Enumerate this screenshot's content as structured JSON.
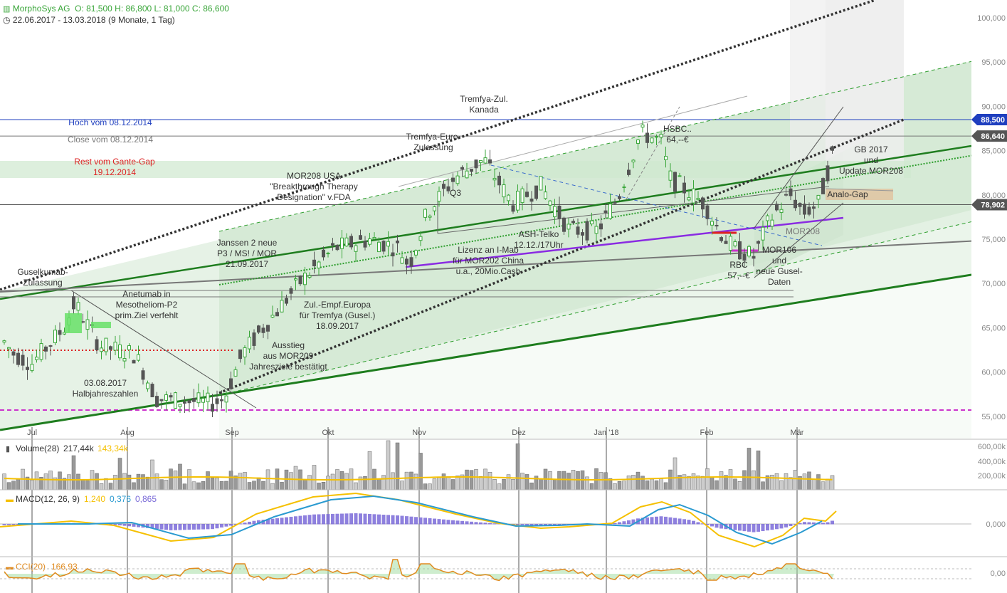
{
  "header": {
    "symbol": "MorphoSys AG",
    "ohlc": "O: 81,500  H: 86,800  L: 81,000  C: 86,600",
    "range": "22.06.2017 - 13.03.2018  (9 Monate, 1 Tag)",
    "icons": [
      "bar-chart-icon",
      "clock-icon"
    ]
  },
  "colors": {
    "up": "#3aa63a",
    "down": "#555555",
    "accent_blue": "#1f3fbf",
    "magenta": "#cc33cc",
    "purple": "#8a2be2",
    "red": "#dd2222",
    "macd": "#f5c000",
    "signal": "#2a9ad0",
    "hist": "#7a6ad8",
    "cci": "#e08a1e",
    "volume_ma": "#f5c000"
  },
  "chart_data": [
    {
      "type": "candlestick",
      "y_axis_ticks": [
        "100,000",
        "95,000",
        "90,000",
        "85,000",
        "80,000",
        "75,000",
        "70,000",
        "65,000",
        "60,000",
        "55,000"
      ],
      "ylim": [
        52.5,
        102
      ],
      "x_axis_ticks": [
        "Jul",
        "Aug",
        "Sep",
        "Okt",
        "Nov",
        "Dez",
        "Jan '18",
        "Feb",
        "Mär"
      ],
      "price_markers": [
        {
          "value": "88,500",
          "color": "#1f3fbf"
        },
        {
          "value": "86,640",
          "color": "#555555"
        },
        {
          "value": "78,902",
          "color": "#555555"
        }
      ],
      "horizontal_labels": [
        {
          "text": "Hoch vom 08.12.2014",
          "color": "#1f3fbf"
        },
        {
          "text": "Close vom 08.12.2014",
          "color": "#777777"
        },
        {
          "text": "Rest vom Gante-Gap\n19.12.2014",
          "color": "#dd2222"
        }
      ],
      "annotations": [
        "Guselkumab-\nZulassung",
        "Anetumab in\nMesotheliom-P2\nprim.Ziel verfehlt",
        "03.08.2017\nHalbjahreszahlen",
        "Janssen 2 neue\nP3 / MS! / MOR\n21.09.2017",
        "Zul.-Empf.Europa\nfür Tremfya (Gusel.)\n18.09.2017",
        "Ausstieg\naus MOR209\nJahresziele bestätigt",
        "MOR208 USA\n\"Breakthrough Therapy\nDesignation\" v.FDA",
        "Tremfya-Euro-\nZulassung",
        "Tremfya-Zul.\nKanada",
        "Q3",
        "Lizenz an I-Mab\nfür MOR202 China\nu.a., 20Mio.Cash",
        "ASH-Telko\n12.12./17Uhr",
        "HSBC..\n64,--€",
        "RBC\n57,--€",
        "MOR208",
        "MOR106\nund\nneue Gusel-\nDaten",
        "GB 2017\nund\nUpdate MOR208",
        "Analo-Gap"
      ]
    },
    {
      "type": "bar",
      "title": "Volume(28)",
      "legend_values": [
        "217,44k",
        "143,34k"
      ],
      "y_axis_ticks": [
        "600,00k",
        "400,00k",
        "200,00k"
      ]
    },
    {
      "type": "line",
      "title": "MACD(12, 26, 9)",
      "legend_values": [
        "1,240",
        "0,376",
        "0,865"
      ],
      "y_axis_ticks": [
        "0,000"
      ]
    },
    {
      "type": "area",
      "title": "CCI(20)",
      "legend_values": [
        "166,93"
      ],
      "y_axis_ticks": [
        "0,00"
      ]
    }
  ]
}
